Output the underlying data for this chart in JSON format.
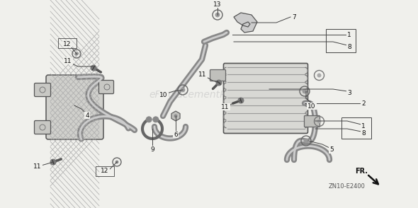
{
  "bg_color": "#f0f0ec",
  "watermark": "eReplacementParts.com",
  "watermark_color": "#bbbbbb",
  "watermark_alpha": 0.5,
  "diagram_code": "ZN10-E2400",
  "fr_label": "FR.",
  "line_color": "#555555",
  "part_color": "#888888",
  "part_fill": "#cccccc"
}
